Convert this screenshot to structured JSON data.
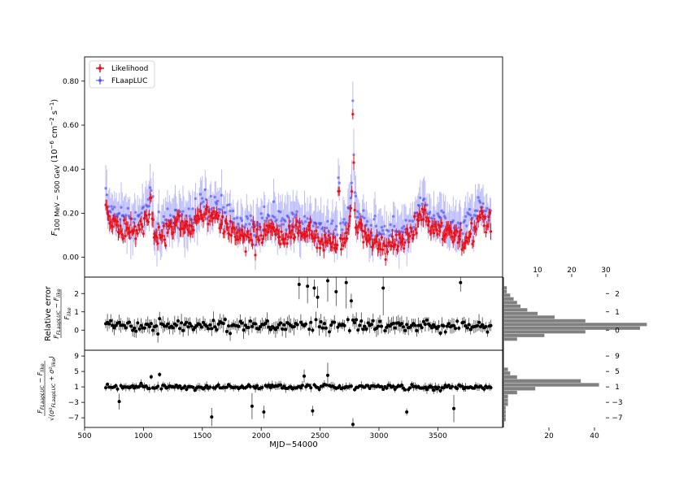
{
  "chart_data": [
    {
      "panel": "light-curve",
      "type": "scatter",
      "ylabel_main": "F",
      "ylabel_sub": "100 MeV − 500 GeV",
      "ylabel_unit": "(10",
      "ylabel_unit_exp": "−6",
      "ylabel_unit_tail": " cm",
      "ylabel_unit_exp2": "−2",
      "ylabel_unit_tail2": " s",
      "ylabel_unit_exp3": "−1",
      "ylabel_unit_close": ")",
      "xlim": [
        500,
        4050
      ],
      "ylim": [
        -0.09,
        0.91
      ],
      "yticks": [
        0.0,
        0.2,
        0.4,
        0.6,
        0.8
      ],
      "ytick_labels": [
        "0.00",
        "0.20",
        "0.40",
        "0.60",
        "0.80"
      ],
      "legend": {
        "position": "top-left",
        "entries": [
          {
            "name": "Likelihood",
            "color": "#e8101a"
          },
          {
            "name": "FLaapLUC",
            "color": "#3b3bf0"
          }
        ]
      },
      "x_start": 680,
      "x_end": 3950,
      "n_points": 400,
      "baseline": [
        [
          680,
          0.22
        ],
        [
          720,
          0.15
        ],
        [
          800,
          0.14
        ],
        [
          900,
          0.12
        ],
        [
          1000,
          0.14
        ],
        [
          1050,
          0.18
        ],
        [
          1100,
          0.09
        ],
        [
          1200,
          0.1
        ],
        [
          1300,
          0.16
        ],
        [
          1400,
          0.13
        ],
        [
          1500,
          0.2
        ],
        [
          1550,
          0.18
        ],
        [
          1650,
          0.17
        ],
        [
          1700,
          0.14
        ],
        [
          1800,
          0.1
        ],
        [
          1900,
          0.09
        ],
        [
          2000,
          0.1
        ],
        [
          2100,
          0.11
        ],
        [
          2200,
          0.09
        ],
        [
          2300,
          0.12
        ],
        [
          2400,
          0.1
        ],
        [
          2500,
          0.08
        ],
        [
          2600,
          0.07
        ],
        [
          2700,
          0.05
        ],
        [
          2760,
          0.2
        ],
        [
          2778,
          0.4
        ],
        [
          2800,
          0.15
        ],
        [
          2900,
          0.09
        ],
        [
          3000,
          0.05
        ],
        [
          3100,
          0.06
        ],
        [
          3200,
          0.08
        ],
        [
          3300,
          0.13
        ],
        [
          3380,
          0.2
        ],
        [
          3450,
          0.13
        ],
        [
          3550,
          0.11
        ],
        [
          3650,
          0.1
        ],
        [
          3700,
          0.07
        ],
        [
          3800,
          0.12
        ],
        [
          3860,
          0.19
        ],
        [
          3950,
          0.14
        ]
      ],
      "flares": [
        [
          2778,
          0.65
        ],
        [
          2786,
          0.43
        ],
        [
          3058,
          -0.01
        ],
        [
          1950,
          0.01
        ],
        [
          2660,
          0.3
        ],
        [
          1060,
          0.27
        ]
      ],
      "marker_color_likelihood": "#e8101a",
      "marker_color_flaapluc": "#3b3bf0"
    },
    {
      "panel": "relative-error",
      "type": "scatter",
      "ylabel_line1": "Relative error",
      "ylim": [
        -1.1,
        2.9
      ],
      "yticks": [
        0,
        1,
        2
      ],
      "ytick_labels": [
        "0",
        "1",
        "2"
      ],
      "n_points": 230,
      "outliers": [
        [
          2320,
          2.5
        ],
        [
          2390,
          2.4
        ],
        [
          2455,
          2.3
        ],
        [
          2560,
          2.7
        ],
        [
          2640,
          2.1
        ],
        [
          2720,
          2.6
        ],
        [
          3040,
          2.3
        ],
        [
          3700,
          2.6
        ],
        [
          2480,
          1.8
        ],
        [
          2760,
          1.6
        ]
      ],
      "hist": {
        "xlim": [
          0,
          30
        ],
        "xticks": [
          10,
          20,
          30
        ],
        "xtick_labels": [
          "10",
          "20",
          "30"
        ],
        "bin_edges": [
          -0.6,
          -0.4,
          -0.2,
          0.0,
          0.2,
          0.4,
          0.6,
          0.8,
          1.0,
          1.2,
          1.4,
          1.6,
          1.8,
          2.0,
          2.2,
          2.4
        ],
        "counts": [
          4,
          12,
          24,
          40,
          42,
          24,
          15,
          10,
          7,
          5,
          4,
          3,
          2,
          1,
          1
        ]
      }
    },
    {
      "panel": "pull",
      "type": "scatter",
      "xlabel": "MJD−54000",
      "ylim": [
        -9.5,
        10.5
      ],
      "yticks": [
        -7,
        -3,
        1,
        5,
        9
      ],
      "ytick_labels": [
        "−7",
        "−3",
        "1",
        "5",
        "9"
      ],
      "xticks": [
        500,
        1000,
        1500,
        2000,
        2500,
        3000,
        3500
      ],
      "xtick_labels": [
        "500",
        "1000",
        "1500",
        "2000",
        "2500",
        "3000",
        "3500"
      ],
      "n_points": 230,
      "outliers": [
        [
          1580,
          -6.8
        ],
        [
          2780,
          -8.7
        ],
        [
          2020,
          -5.5
        ],
        [
          3230,
          -5.5
        ],
        [
          2440,
          -5.2
        ],
        [
          790,
          -2.8
        ],
        [
          1920,
          -4.0
        ],
        [
          3640,
          -4.6
        ],
        [
          1070,
          3.6
        ],
        [
          1130,
          4.2
        ],
        [
          2360,
          3.8
        ],
        [
          2560,
          4.0
        ]
      ],
      "hist": {
        "xlim": [
          0,
          45
        ],
        "xticks": [
          20,
          40
        ],
        "xtick_labels": [
          "20",
          "40"
        ],
        "bin_edges": [
          -8,
          -7,
          -6,
          -5,
          -4,
          -3,
          -2,
          -1,
          0,
          1,
          2,
          3,
          4,
          5,
          6
        ],
        "counts": [
          1,
          1,
          1,
          1,
          2,
          2,
          2,
          6,
          14,
          42,
          34,
          6,
          3,
          2
        ]
      }
    }
  ]
}
